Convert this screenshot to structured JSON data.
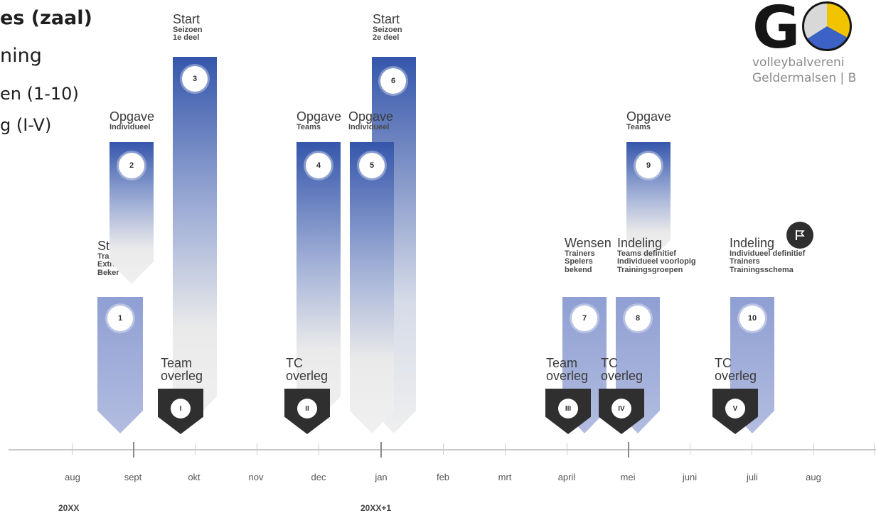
{
  "title": {
    "line1": "es (zaal)",
    "line2": "ning",
    "line3": "en (1-10)",
    "line4": "g (I-V)"
  },
  "logo": {
    "letter": "G",
    "line1": "volleybalvereni",
    "line2": "Geldermalsen | B"
  },
  "bars": [
    {
      "num": "1",
      "heading": "Start",
      "lines": [
        "Training",
        "Extra training",
        "Beker"
      ]
    },
    {
      "num": "2",
      "heading": "Opgave",
      "lines": [
        "Individueel"
      ]
    },
    {
      "num": "3",
      "heading": "Start",
      "lines": [
        "Seizoen",
        "1e deel"
      ]
    },
    {
      "num": "4",
      "heading": "Opgave",
      "lines": [
        "Teams"
      ]
    },
    {
      "num": "5",
      "heading": "Opgave",
      "lines": [
        "Individueel"
      ]
    },
    {
      "num": "6",
      "heading": "Start",
      "lines": [
        "Seizoen",
        "2e deel"
      ]
    },
    {
      "num": "7",
      "heading": "Wensen",
      "lines": [
        "Trainers",
        "Spelers",
        "bekend"
      ]
    },
    {
      "num": "8",
      "heading": "Indeling",
      "lines": [
        "Teams definitief",
        "Individueel voorlopig",
        "Trainingsgroepen"
      ]
    },
    {
      "num": "9",
      "heading": "Opgave",
      "lines": [
        "Teams"
      ]
    },
    {
      "num": "10",
      "heading": "Indeling",
      "lines": [
        "Individueel definitief",
        "Trainers",
        "Trainingsschema"
      ]
    }
  ],
  "meetings": [
    {
      "num": "I",
      "line1": "Team",
      "line2": "overleg"
    },
    {
      "num": "II",
      "line1": "TC",
      "line2": "overleg"
    },
    {
      "num": "III",
      "line1": "Team",
      "line2": "overleg"
    },
    {
      "num": "IV",
      "line1": "TC",
      "line2": "overleg"
    },
    {
      "num": "V",
      "line1": "TC",
      "line2": "overleg"
    }
  ],
  "flag_icon": "flag-icon",
  "axis": {
    "months": [
      "aug",
      "sept",
      "okt",
      "nov",
      "dec",
      "jan",
      "feb",
      "mrt",
      "april",
      "mei",
      "juni",
      "juli",
      "aug"
    ],
    "year_start": "20XX",
    "year_next": "20XX+1"
  }
}
